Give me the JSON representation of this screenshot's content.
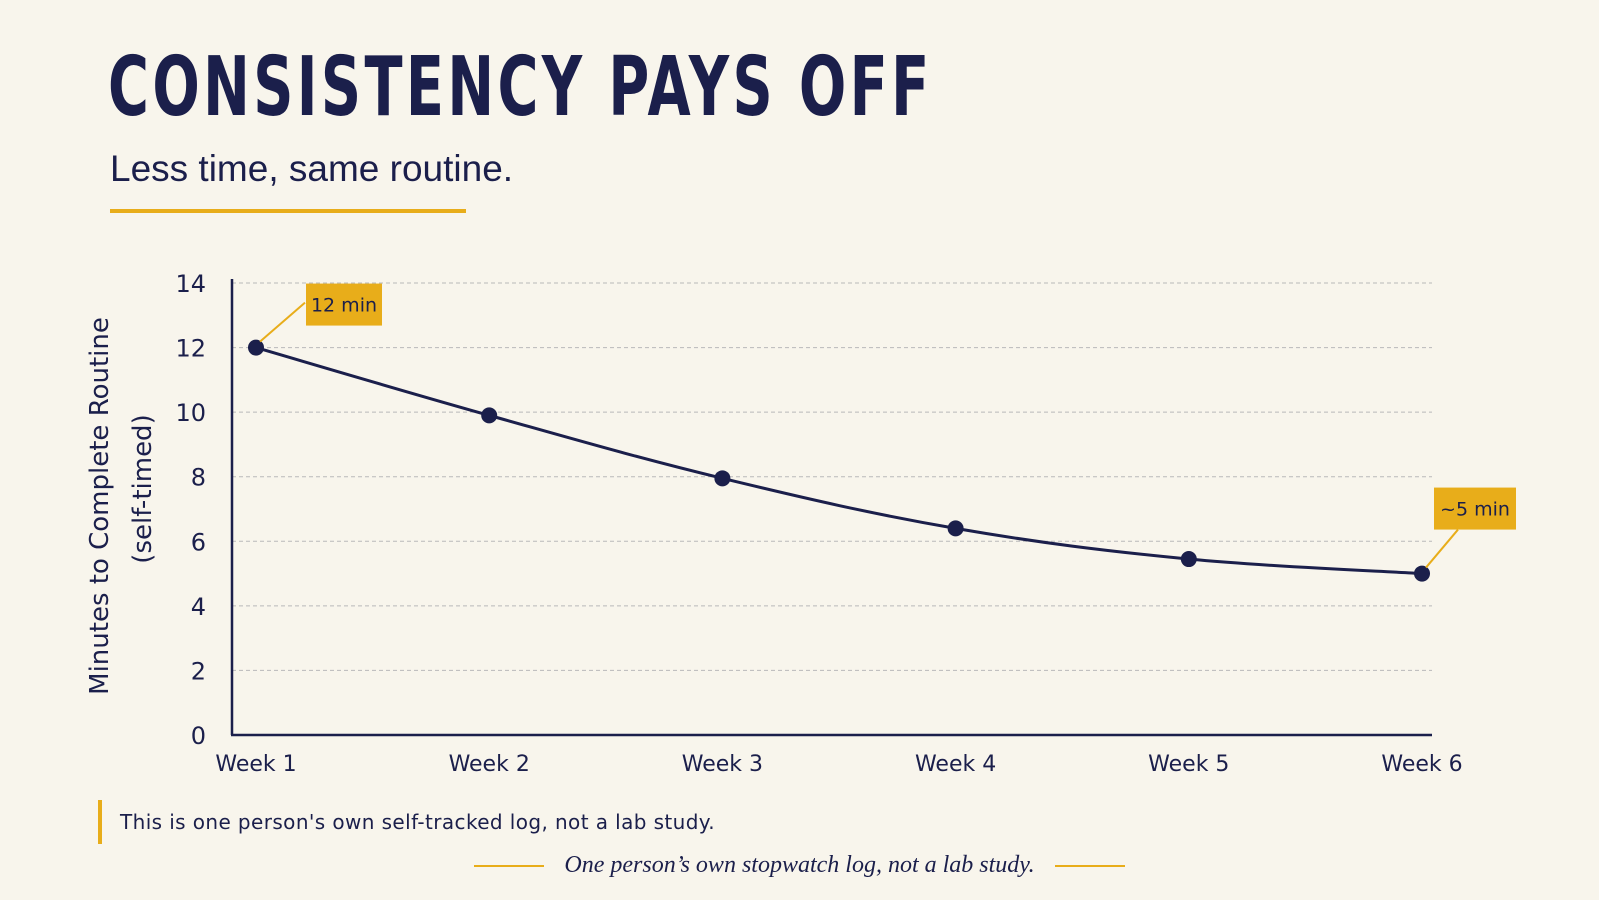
{
  "title": "CONSISTENCY PAYS OFF",
  "subtitle": "Less time, same routine.",
  "note": "This is one person's own self-tracked log, not a lab study.",
  "footer_caption": "One person’s own stopwatch log, not a lab study.",
  "colors": {
    "background": "#f8f5ec",
    "navy": "#1b1f4b",
    "accent": "#e8ad1a",
    "grid": "#b9b9b9"
  },
  "chart_data": {
    "type": "line",
    "categories": [
      "Week 1",
      "Week 2",
      "Week 3",
      "Week 4",
      "Week 5",
      "Week 6"
    ],
    "series": [
      {
        "values": [
          12,
          9.9,
          7.95,
          6.4,
          5.45,
          5
        ]
      }
    ],
    "ylabel": "Minutes to Complete Routine",
    "ylabel_sub": "(self-timed)",
    "xlabel": "",
    "ylim": [
      0,
      14
    ],
    "yticks": [
      0,
      2,
      4,
      6,
      8,
      10,
      12,
      14
    ],
    "grid": true,
    "grid_style": "dashed horizontal",
    "annotations": [
      {
        "label": "12 min",
        "point_index": 0
      },
      {
        "label": "~5 min",
        "point_index": 5
      }
    ]
  }
}
